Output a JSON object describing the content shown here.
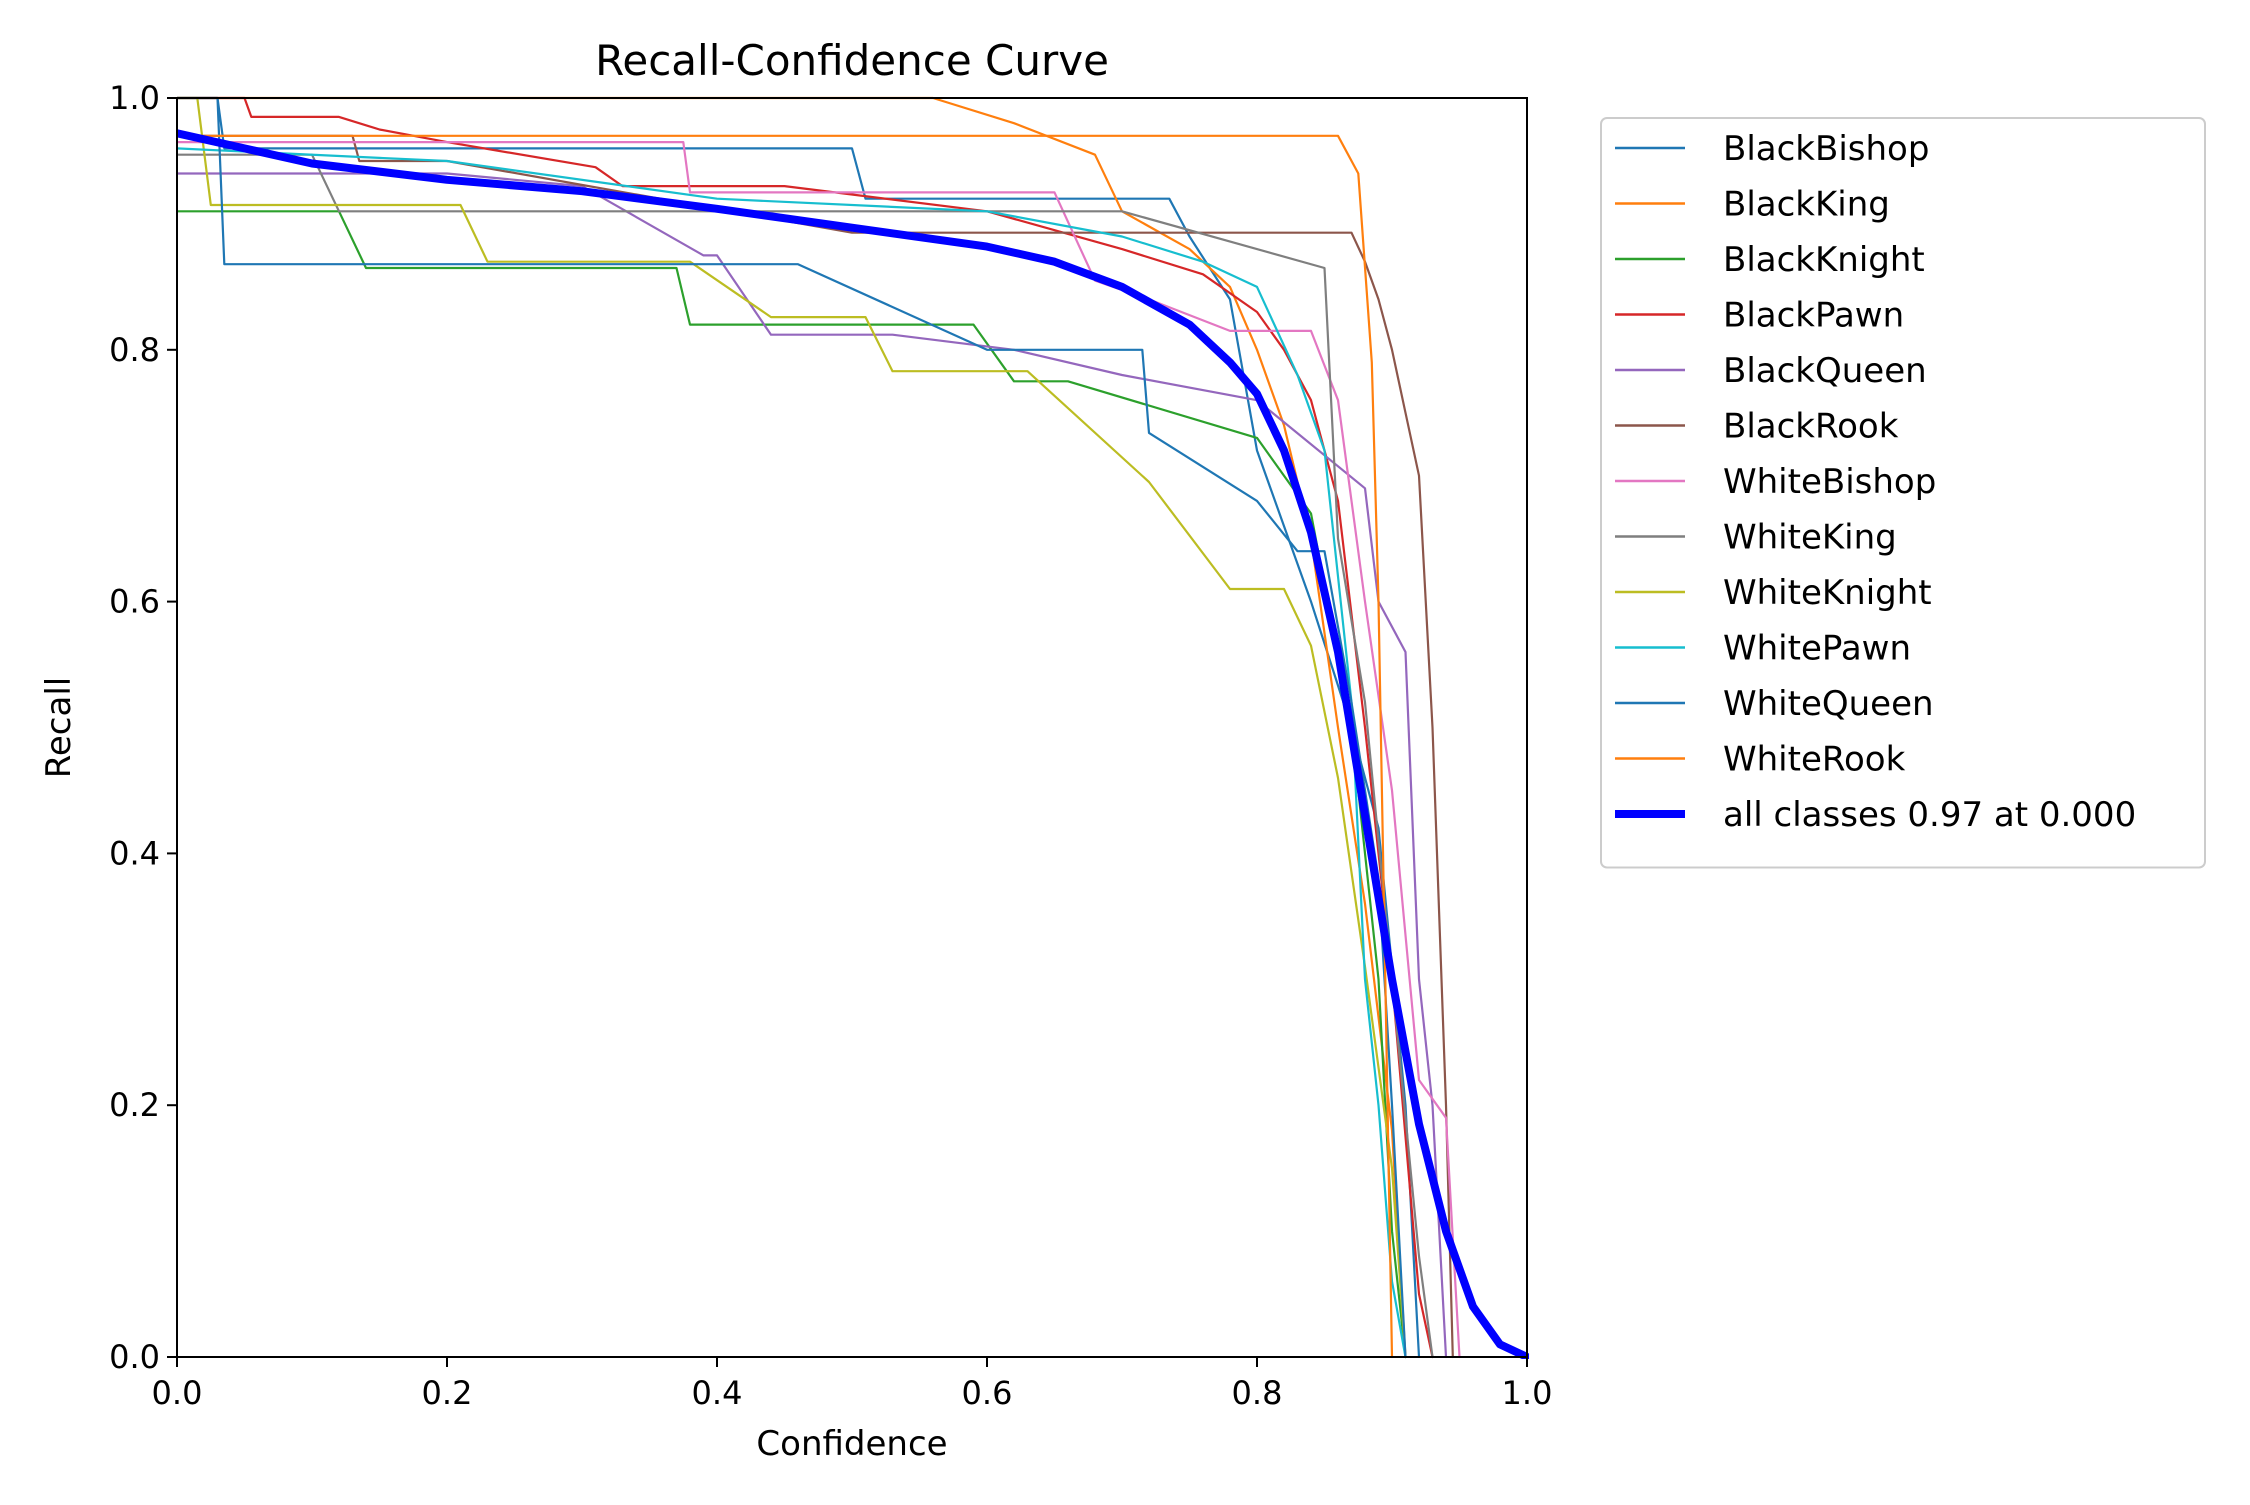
{
  "chart_data": {
    "type": "line",
    "title": "Recall-Confidence Curve",
    "xlabel": "Confidence",
    "ylabel": "Recall",
    "xlim": [
      0,
      1
    ],
    "ylim": [
      0,
      1
    ],
    "x_ticks": [
      0.0,
      0.2,
      0.4,
      0.6,
      0.8,
      1.0
    ],
    "y_ticks": [
      0.0,
      0.2,
      0.4,
      0.6,
      0.8,
      1.0
    ],
    "x_tick_labels": [
      "0.0",
      "0.2",
      "0.4",
      "0.6",
      "0.8",
      "1.0"
    ],
    "y_tick_labels": [
      "0.0",
      "0.2",
      "0.4",
      "0.6",
      "0.8",
      "1.0"
    ],
    "legend_position": "outside-right-top",
    "series": [
      {
        "name": "BlackBishop",
        "color": "#1f77b4",
        "points": [
          [
            0,
            1.0
          ],
          [
            0.03,
            1.0
          ],
          [
            0.035,
            0.96
          ],
          [
            0.2,
            0.96
          ],
          [
            0.5,
            0.96
          ],
          [
            0.51,
            0.92
          ],
          [
            0.72,
            0.92
          ],
          [
            0.735,
            0.92
          ],
          [
            0.75,
            0.89
          ],
          [
            0.78,
            0.84
          ],
          [
            0.8,
            0.72
          ],
          [
            0.82,
            0.66
          ],
          [
            0.84,
            0.6
          ],
          [
            0.87,
            0.5
          ],
          [
            0.89,
            0.42
          ],
          [
            0.91,
            0.2
          ],
          [
            0.92,
            0.0
          ]
        ]
      },
      {
        "name": "BlackKing",
        "color": "#ff7f0e",
        "points": [
          [
            0,
            1.0
          ],
          [
            0.56,
            1.0
          ],
          [
            0.62,
            0.98
          ],
          [
            0.68,
            0.955
          ],
          [
            0.7,
            0.91
          ],
          [
            0.75,
            0.88
          ],
          [
            0.78,
            0.85
          ],
          [
            0.8,
            0.8
          ],
          [
            0.82,
            0.74
          ],
          [
            0.84,
            0.65
          ],
          [
            0.86,
            0.5
          ],
          [
            0.88,
            0.36
          ],
          [
            0.9,
            0.18
          ],
          [
            0.91,
            0.0
          ]
        ]
      },
      {
        "name": "BlackKnight",
        "color": "#2ca02c",
        "points": [
          [
            0,
            0.91
          ],
          [
            0.12,
            0.91
          ],
          [
            0.14,
            0.865
          ],
          [
            0.37,
            0.865
          ],
          [
            0.38,
            0.82
          ],
          [
            0.59,
            0.82
          ],
          [
            0.62,
            0.775
          ],
          [
            0.66,
            0.775
          ],
          [
            0.8,
            0.73
          ],
          [
            0.84,
            0.67
          ],
          [
            0.87,
            0.5
          ],
          [
            0.89,
            0.3
          ],
          [
            0.9,
            0.1
          ],
          [
            0.91,
            0.0
          ]
        ]
      },
      {
        "name": "BlackPawn",
        "color": "#d62728",
        "points": [
          [
            0,
            1.0
          ],
          [
            0.05,
            1.0
          ],
          [
            0.055,
            0.985
          ],
          [
            0.12,
            0.985
          ],
          [
            0.15,
            0.975
          ],
          [
            0.2,
            0.965
          ],
          [
            0.31,
            0.945
          ],
          [
            0.33,
            0.93
          ],
          [
            0.45,
            0.93
          ],
          [
            0.6,
            0.91
          ],
          [
            0.7,
            0.88
          ],
          [
            0.76,
            0.86
          ],
          [
            0.8,
            0.83
          ],
          [
            0.82,
            0.8
          ],
          [
            0.84,
            0.76
          ],
          [
            0.86,
            0.68
          ],
          [
            0.88,
            0.5
          ],
          [
            0.9,
            0.3
          ],
          [
            0.92,
            0.05
          ],
          [
            0.93,
            0.0
          ]
        ]
      },
      {
        "name": "BlackQueen",
        "color": "#9467bd",
        "points": [
          [
            0,
            0.94
          ],
          [
            0.2,
            0.94
          ],
          [
            0.3,
            0.93
          ],
          [
            0.39,
            0.875
          ],
          [
            0.4,
            0.875
          ],
          [
            0.44,
            0.812
          ],
          [
            0.53,
            0.812
          ],
          [
            0.62,
            0.8
          ],
          [
            0.7,
            0.78
          ],
          [
            0.8,
            0.76
          ],
          [
            0.88,
            0.69
          ],
          [
            0.89,
            0.6
          ],
          [
            0.91,
            0.56
          ],
          [
            0.92,
            0.3
          ],
          [
            0.93,
            0.2
          ],
          [
            0.94,
            0.0
          ]
        ]
      },
      {
        "name": "BlackRook",
        "color": "#8c564b",
        "points": [
          [
            0,
            0.97
          ],
          [
            0.13,
            0.97
          ],
          [
            0.135,
            0.95
          ],
          [
            0.2,
            0.95
          ],
          [
            0.5,
            0.893
          ],
          [
            0.87,
            0.893
          ],
          [
            0.88,
            0.87
          ],
          [
            0.89,
            0.84
          ],
          [
            0.9,
            0.8
          ],
          [
            0.91,
            0.75
          ],
          [
            0.92,
            0.7
          ],
          [
            0.93,
            0.5
          ],
          [
            0.94,
            0.2
          ],
          [
            0.945,
            0.0
          ]
        ]
      },
      {
        "name": "WhiteBishop",
        "color": "#e377c2",
        "points": [
          [
            0,
            0.965
          ],
          [
            0.375,
            0.965
          ],
          [
            0.38,
            0.925
          ],
          [
            0.65,
            0.925
          ],
          [
            0.68,
            0.855
          ],
          [
            0.72,
            0.84
          ],
          [
            0.78,
            0.815
          ],
          [
            0.84,
            0.815
          ],
          [
            0.86,
            0.76
          ],
          [
            0.88,
            0.6
          ],
          [
            0.9,
            0.45
          ],
          [
            0.92,
            0.22
          ],
          [
            0.94,
            0.19
          ],
          [
            0.95,
            0.0
          ]
        ]
      },
      {
        "name": "WhiteKing",
        "color": "#7f7f7f",
        "points": [
          [
            0,
            0.955
          ],
          [
            0.1,
            0.955
          ],
          [
            0.12,
            0.91
          ],
          [
            0.46,
            0.91
          ],
          [
            0.7,
            0.91
          ],
          [
            0.85,
            0.865
          ],
          [
            0.86,
            0.65
          ],
          [
            0.88,
            0.52
          ],
          [
            0.9,
            0.3
          ],
          [
            0.92,
            0.08
          ],
          [
            0.93,
            0.0
          ]
        ]
      },
      {
        "name": "WhiteKnight",
        "color": "#bcbd22",
        "points": [
          [
            0,
            1.0
          ],
          [
            0.015,
            1.0
          ],
          [
            0.025,
            0.915
          ],
          [
            0.21,
            0.915
          ],
          [
            0.23,
            0.87
          ],
          [
            0.38,
            0.87
          ],
          [
            0.44,
            0.826
          ],
          [
            0.51,
            0.826
          ],
          [
            0.53,
            0.783
          ],
          [
            0.63,
            0.783
          ],
          [
            0.72,
            0.695
          ],
          [
            0.78,
            0.61
          ],
          [
            0.82,
            0.61
          ],
          [
            0.84,
            0.565
          ],
          [
            0.86,
            0.46
          ],
          [
            0.88,
            0.31
          ],
          [
            0.9,
            0.15
          ],
          [
            0.91,
            0.0
          ]
        ]
      },
      {
        "name": "WhitePawn",
        "color": "#17becf",
        "points": [
          [
            0,
            0.96
          ],
          [
            0.2,
            0.95
          ],
          [
            0.4,
            0.92
          ],
          [
            0.6,
            0.91
          ],
          [
            0.7,
            0.89
          ],
          [
            0.76,
            0.87
          ],
          [
            0.8,
            0.85
          ],
          [
            0.83,
            0.78
          ],
          [
            0.85,
            0.72
          ],
          [
            0.87,
            0.52
          ],
          [
            0.88,
            0.3
          ],
          [
            0.89,
            0.2
          ],
          [
            0.9,
            0.06
          ],
          [
            0.91,
            0.0
          ]
        ]
      },
      {
        "name": "WhiteQueen",
        "color": "#1f77b4",
        "points": [
          [
            0,
            1.0
          ],
          [
            0.03,
            1.0
          ],
          [
            0.035,
            0.868
          ],
          [
            0.46,
            0.868
          ],
          [
            0.6,
            0.8
          ],
          [
            0.715,
            0.8
          ],
          [
            0.72,
            0.734
          ],
          [
            0.8,
            0.68
          ],
          [
            0.83,
            0.64
          ],
          [
            0.85,
            0.64
          ],
          [
            0.87,
            0.52
          ],
          [
            0.89,
            0.38
          ],
          [
            0.9,
            0.2
          ],
          [
            0.91,
            0.0
          ]
        ]
      },
      {
        "name": "WhiteRook",
        "color": "#ff7f0e",
        "points": [
          [
            0,
            0.97
          ],
          [
            0.12,
            0.97
          ],
          [
            0.13,
            0.97
          ],
          [
            0.86,
            0.97
          ],
          [
            0.875,
            0.94
          ],
          [
            0.885,
            0.79
          ],
          [
            0.89,
            0.6
          ],
          [
            0.895,
            0.3
          ],
          [
            0.9,
            0.0
          ]
        ]
      },
      {
        "name": "all classes 0.97 at 0.000",
        "color": "#0000ff",
        "thick": true,
        "points": [
          [
            0,
            0.972
          ],
          [
            0.05,
            0.96
          ],
          [
            0.1,
            0.948
          ],
          [
            0.2,
            0.935
          ],
          [
            0.3,
            0.926
          ],
          [
            0.4,
            0.912
          ],
          [
            0.5,
            0.897
          ],
          [
            0.6,
            0.882
          ],
          [
            0.65,
            0.87
          ],
          [
            0.7,
            0.85
          ],
          [
            0.75,
            0.82
          ],
          [
            0.78,
            0.79
          ],
          [
            0.8,
            0.765
          ],
          [
            0.82,
            0.72
          ],
          [
            0.84,
            0.655
          ],
          [
            0.86,
            0.56
          ],
          [
            0.88,
            0.43
          ],
          [
            0.9,
            0.3
          ],
          [
            0.92,
            0.185
          ],
          [
            0.94,
            0.1
          ],
          [
            0.96,
            0.04
          ],
          [
            0.98,
            0.01
          ],
          [
            1.0,
            0.0
          ]
        ]
      }
    ]
  }
}
